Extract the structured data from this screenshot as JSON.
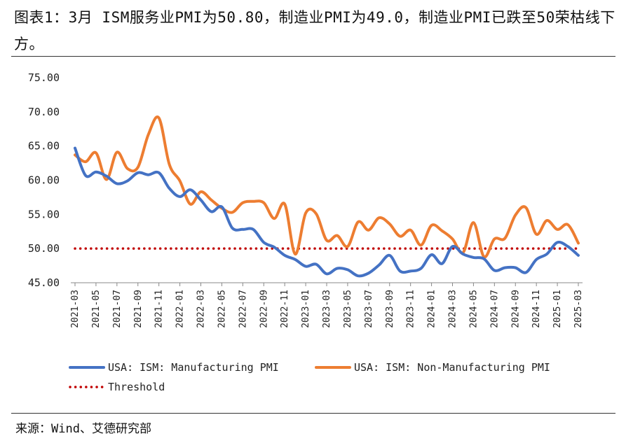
{
  "title": "图表1：3月 ISM服务业PMI为50.80，制造业PMI为49.0，制造业PMI已跌至50荣枯线下方。",
  "source": "来源：Wind、艾德研究部",
  "chart_data": {
    "type": "line",
    "ylim": [
      45,
      75
    ],
    "yticks": [
      "75.00",
      "70.00",
      "65.00",
      "60.00",
      "55.00",
      "50.00",
      "45.00"
    ],
    "ytick_values": [
      75,
      70,
      65,
      60,
      55,
      50,
      45
    ],
    "x": [
      "2021-03",
      "2021-04",
      "2021-05",
      "2021-06",
      "2021-07",
      "2021-08",
      "2021-09",
      "2021-10",
      "2021-11",
      "2021-12",
      "2022-01",
      "2022-02",
      "2022-03",
      "2022-04",
      "2022-05",
      "2022-06",
      "2022-07",
      "2022-08",
      "2022-09",
      "2022-10",
      "2022-11",
      "2022-12",
      "2023-01",
      "2023-02",
      "2023-03",
      "2023-04",
      "2023-05",
      "2023-06",
      "2023-07",
      "2023-08",
      "2023-09",
      "2023-10",
      "2023-11",
      "2023-12",
      "2024-01",
      "2024-02",
      "2024-03",
      "2024-04",
      "2024-05",
      "2024-06",
      "2024-07",
      "2024-08",
      "2024-09",
      "2024-10",
      "2024-11",
      "2024-12",
      "2025-01",
      "2025-02",
      "2025-03"
    ],
    "xticks": [
      "2021-03",
      "2021-05",
      "2021-07",
      "2021-09",
      "2021-11",
      "2022-01",
      "2022-03",
      "2022-05",
      "2022-07",
      "2022-09",
      "2022-11",
      "2023-01",
      "2023-03",
      "2023-05",
      "2023-07",
      "2023-09",
      "2023-11",
      "2024-01",
      "2024-03",
      "2024-05",
      "2024-07",
      "2024-09",
      "2024-11",
      "2025-01",
      "2025-03"
    ],
    "series": [
      {
        "name": "USA: ISM: Manufacturing PMI",
        "color": "#4472C4",
        "values": [
          64.7,
          60.7,
          61.2,
          60.6,
          59.5,
          59.9,
          61.1,
          60.8,
          61.1,
          58.8,
          57.6,
          58.6,
          57.1,
          55.4,
          56.1,
          53.0,
          52.8,
          52.8,
          50.9,
          50.2,
          49.0,
          48.4,
          47.4,
          47.7,
          46.3,
          47.1,
          46.9,
          46.0,
          46.4,
          47.6,
          49.0,
          46.7,
          46.7,
          47.1,
          49.1,
          47.8,
          50.3,
          49.2,
          48.7,
          48.5,
          46.8,
          47.2,
          47.2,
          46.5,
          48.4,
          49.2,
          50.9,
          50.3,
          49.0
        ]
      },
      {
        "name": "USA: ISM: Non-Manufacturing PMI",
        "color": "#ED7D31",
        "values": [
          63.7,
          62.7,
          64.0,
          60.1,
          64.1,
          61.7,
          61.9,
          66.7,
          69.1,
          62.3,
          59.9,
          56.5,
          58.3,
          57.1,
          55.9,
          55.3,
          56.7,
          56.9,
          56.7,
          54.4,
          56.5,
          49.2,
          55.2,
          55.1,
          51.2,
          51.9,
          50.3,
          53.9,
          52.7,
          54.5,
          53.6,
          51.8,
          52.7,
          50.5,
          53.4,
          52.6,
          51.4,
          49.4,
          53.8,
          48.8,
          51.4,
          51.5,
          54.9,
          56.0,
          52.1,
          54.1,
          52.8,
          53.5,
          50.8
        ]
      },
      {
        "name": "Threshold",
        "color": "#C00000",
        "constant": 50
      }
    ]
  }
}
